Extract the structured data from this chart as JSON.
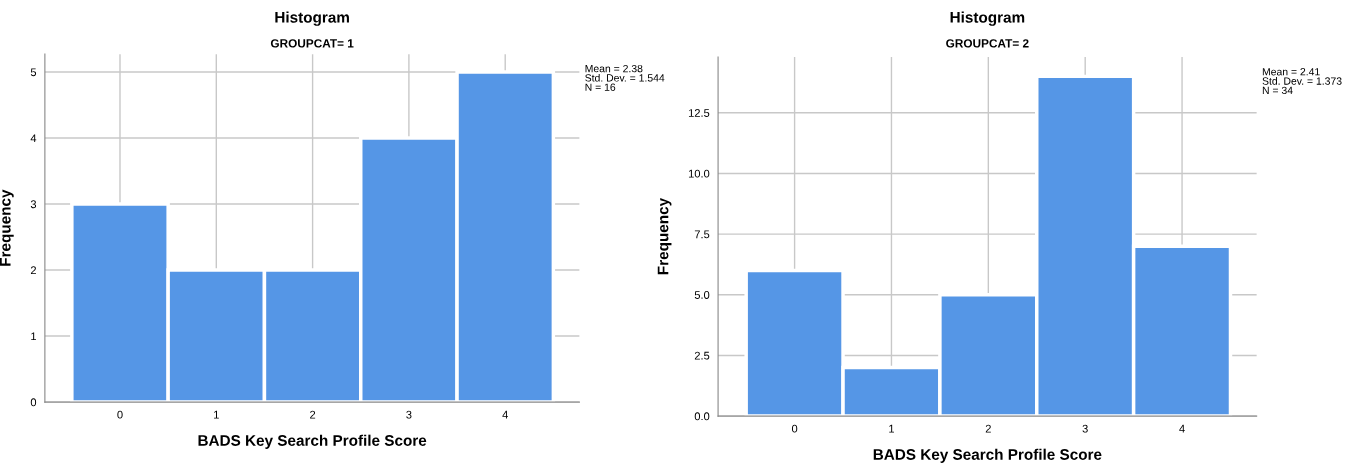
{
  "chart_data": [
    {
      "type": "histogram",
      "title": "Histogram",
      "subtitle": "GROUPCAT= 1",
      "xlabel": "BADS Key Search Profile Score",
      "ylabel": "Frequency",
      "bins": [
        -0.5,
        0.5,
        1.5,
        2.5,
        3.5,
        4.5
      ],
      "values": [
        3,
        2,
        2,
        4,
        5
      ],
      "color": "#5596e6",
      "xlim": [
        -0.78,
        4.77
      ],
      "xticks": [
        0,
        1,
        2,
        3,
        4
      ],
      "ylim": [
        0,
        5.27
      ],
      "yticks": [
        0,
        1,
        2,
        3,
        4,
        5
      ],
      "grid": true,
      "annotations": [
        "Mean = 2.38\nStd. Dev. = 1.544\nN = 16"
      ]
    },
    {
      "type": "histogram",
      "title": "Histogram",
      "subtitle": "GROUPCAT= 2",
      "xlabel": "BADS Key Search Profile Score",
      "ylabel": "Frequency",
      "bins": [
        -0.5,
        0.5,
        1.5,
        2.5,
        3.5,
        4.5
      ],
      "values": [
        6,
        2,
        5,
        14,
        7
      ],
      "color": "#5596e6",
      "xlim": [
        -0.79,
        4.77
      ],
      "xticks": [
        0,
        1,
        2,
        3,
        4
      ],
      "ylim": [
        0,
        14.8
      ],
      "yticks": [
        {
          "value": 0,
          "label": "0.0"
        },
        2.5,
        {
          "value": 5,
          "label": "5.0"
        },
        {
          "value": 7.5,
          "label": "7.5"
        },
        {
          "value": 10,
          "label": "10.0"
        },
        12.5
      ],
      "grid": true,
      "annotations": [
        "Mean = 2.41\nStd. Dev. = 1.373\nN = 34"
      ]
    }
  ]
}
